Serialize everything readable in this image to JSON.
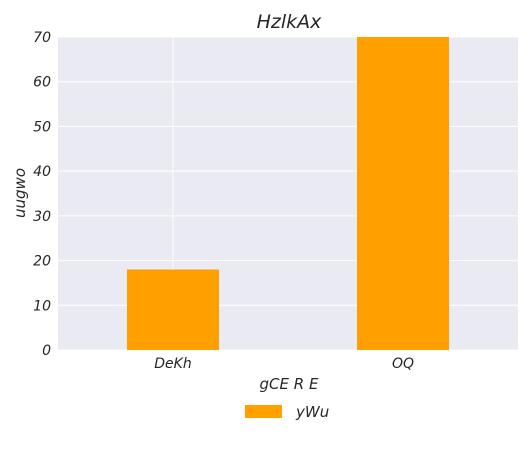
{
  "chart_data": {
    "type": "bar",
    "title": "HzlkAx",
    "xlabel": "gCE R E",
    "ylabel": "uugwo",
    "categories": [
      "DeKh",
      "OQ"
    ],
    "series": [
      {
        "name": "yWu",
        "values": [
          18,
          70
        ],
        "color": "#FFA000"
      }
    ],
    "ylim": [
      0,
      70
    ],
    "yticks": [
      0,
      10,
      20,
      30,
      40,
      50,
      60,
      70
    ],
    "grid": true,
    "legend_position": "bottom-center",
    "background_color": "#EAEAF2"
  }
}
